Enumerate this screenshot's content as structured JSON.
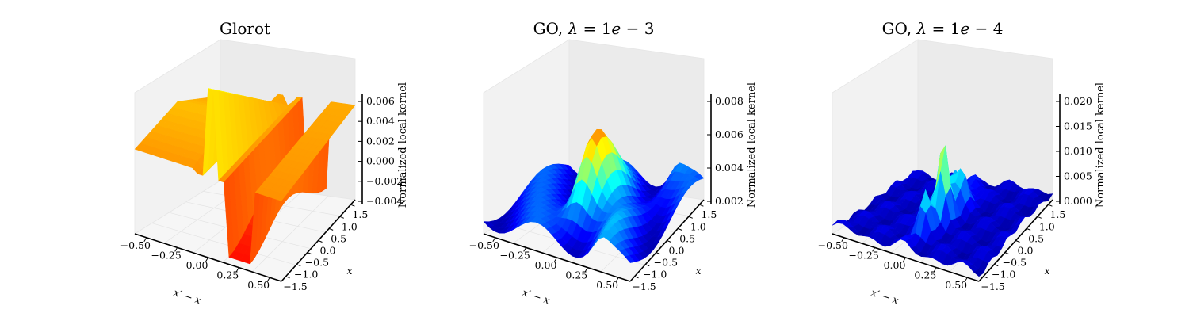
{
  "figure": {
    "background": "#ffffff"
  },
  "chart_data": [
    {
      "type": "surface3d",
      "title_parts": [
        "Glorot",
        "",
        "",
        ""
      ],
      "xlabel": "x′ − x",
      "ylabel": "x",
      "zlabel": "Normalized local kernel",
      "x_ticks": [
        "−0.50",
        "−0.25",
        "0.00",
        "0.25",
        "0.50"
      ],
      "y_ticks": [
        "−1.5",
        "−1.0",
        "−0.5",
        "0.0",
        "0.5",
        "1.0",
        "1.5"
      ],
      "z_ticks": [
        "−0.004",
        "−0.002",
        "0.000",
        "0.002",
        "0.004",
        "0.006"
      ],
      "xlim": [
        -0.65,
        0.65
      ],
      "ylim": [
        -1.7,
        1.7
      ],
      "zlim": [
        -0.004,
        0.0065
      ],
      "colormap": "autumn-to-jet",
      "surface": "step ridge along x′−x ≈ 0 with sharp dip"
    },
    {
      "type": "surface3d",
      "title_parts": [
        "GO, ",
        "λ",
        " = 1e",
        " − 3"
      ],
      "xlabel": "x′ − x",
      "ylabel": "x",
      "zlabel": "Normalized local kernel",
      "x_ticks": [
        "−0.50",
        "−0.25",
        "0.00",
        "0.25",
        "0.50"
      ],
      "y_ticks": [
        "−1.5",
        "−1.0",
        "−0.5",
        "0.0",
        "0.5",
        "1.0",
        "1.5"
      ],
      "z_ticks": [
        "0.002",
        "0.004",
        "0.006",
        "0.008"
      ],
      "xlim": [
        -0.65,
        0.65
      ],
      "ylim": [
        -1.7,
        1.7
      ],
      "zlim": [
        0.0005,
        0.0095
      ],
      "colormap": "jet",
      "surface": "smooth peak near x′−x ≈ 0"
    },
    {
      "type": "surface3d",
      "title_parts": [
        "GO, ",
        "λ",
        " = 1e",
        " − 4"
      ],
      "xlabel": "x′ − x",
      "ylabel": "x",
      "zlabel": "Normalized local kernel",
      "x_ticks": [
        "−0.50",
        "−0.25",
        "0.00",
        "0.25",
        "0.50"
      ],
      "y_ticks": [
        "−1.5",
        "−1.0",
        "−0.5",
        "0.0",
        "0.5",
        "1.0",
        "1.5"
      ],
      "z_ticks": [
        "0.000",
        "0.005",
        "0.010",
        "0.015",
        "0.020"
      ],
      "xlim": [
        -0.65,
        0.65
      ],
      "ylim": [
        -1.7,
        1.7
      ],
      "zlim": [
        0.0,
        0.0205
      ],
      "colormap": "jet",
      "surface": "noisy sharp peaks near x′−x ≈ 0"
    }
  ]
}
